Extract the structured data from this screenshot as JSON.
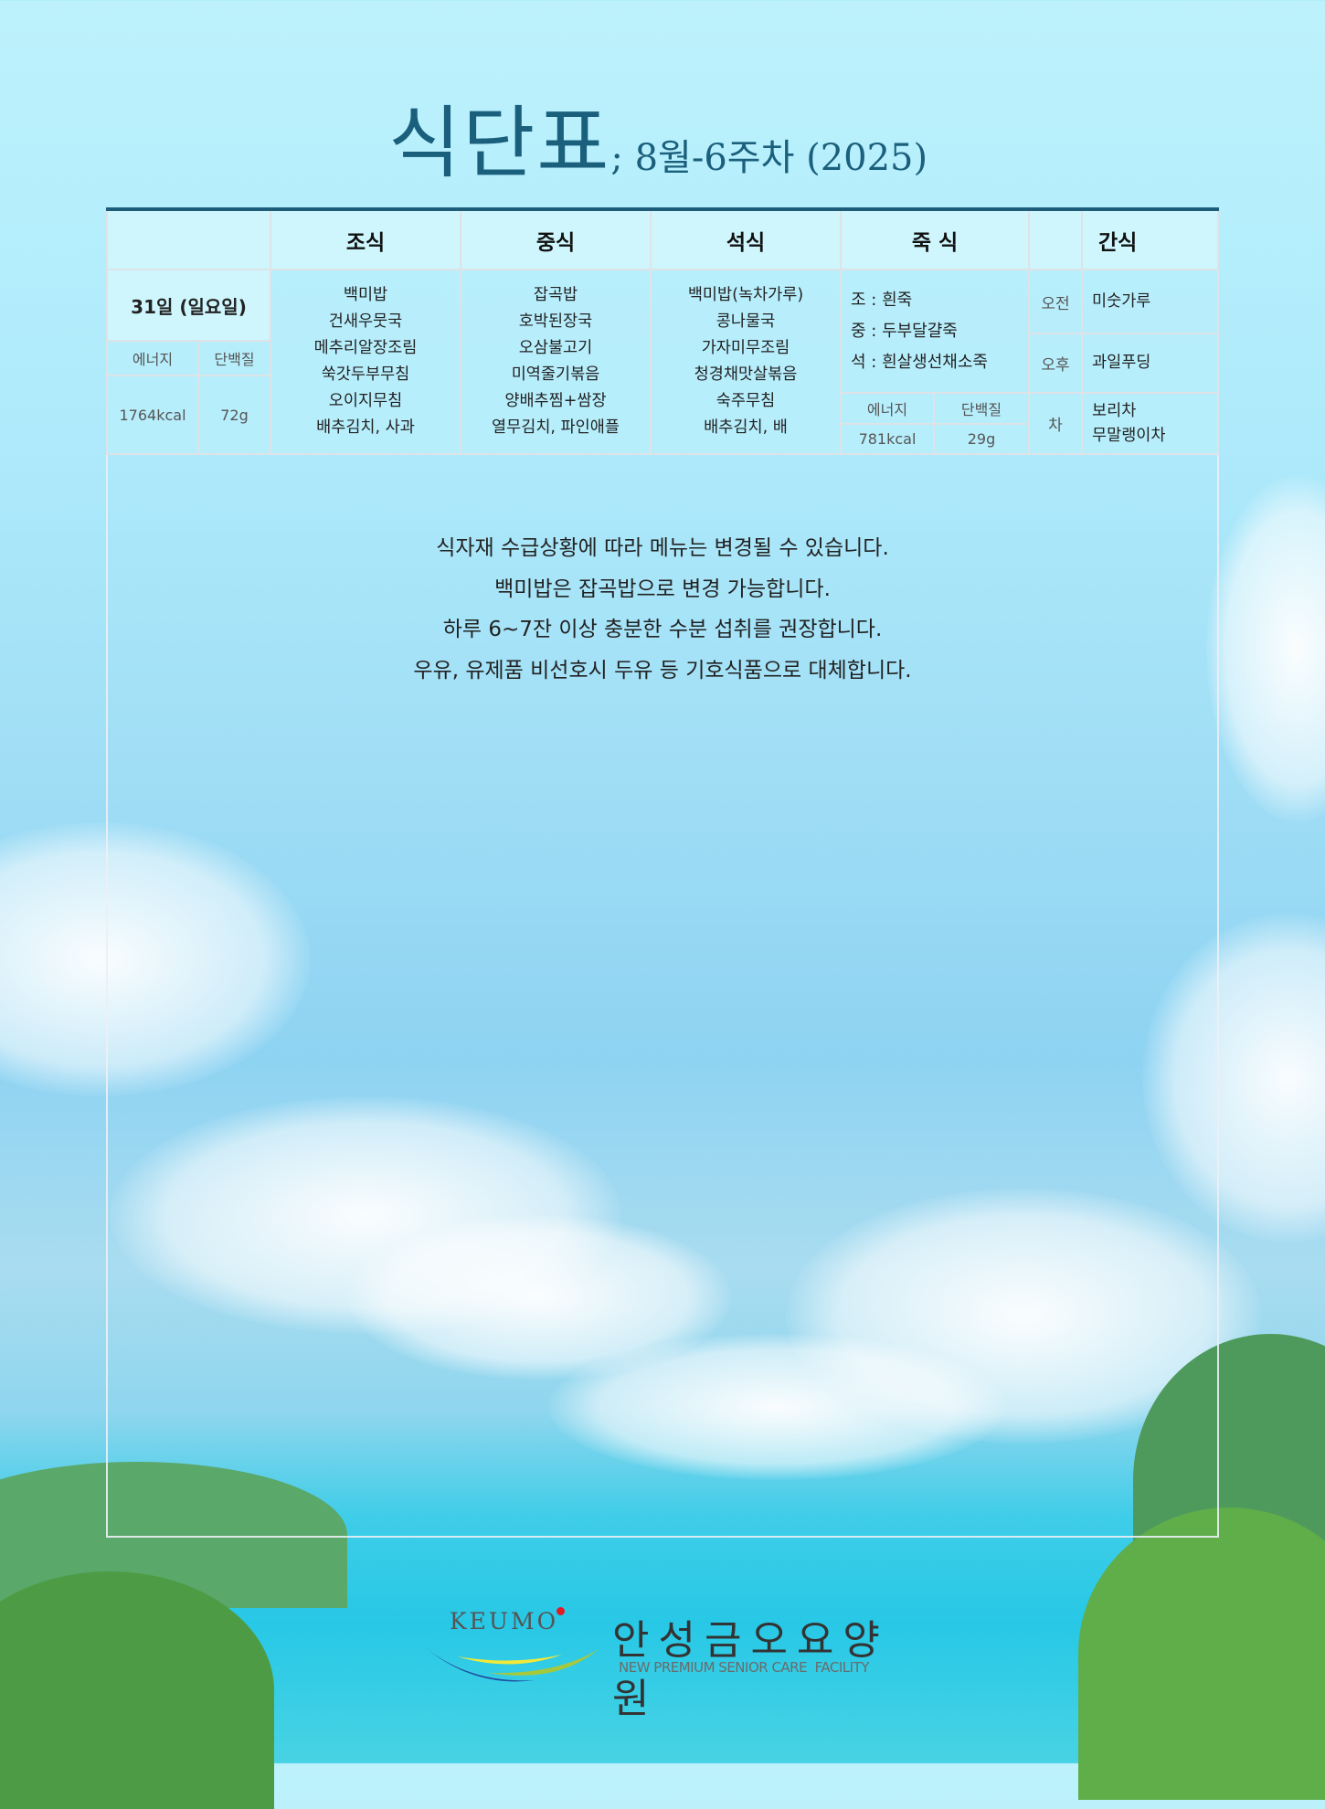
{
  "title": {
    "main": "식단표",
    "sub": "; 8월-6주차 (2025)"
  },
  "table": {
    "headers": {
      "breakfast": "조식",
      "lunch": "중식",
      "dinner": "석식",
      "porridge": "죽 식",
      "snack": "간식"
    },
    "date": "31일 (일요일)",
    "nutrition_labels": {
      "energy": "에너지",
      "protein": "단백질"
    },
    "regular_nutrition": {
      "energy": "1764kcal",
      "protein": "72g"
    },
    "breakfast": [
      "백미밥",
      "건새우뭇국",
      "메추리알장조림",
      "쑥갓두부무침",
      "오이지무침",
      "배추김치, 사과"
    ],
    "lunch": [
      "잡곡밥",
      "호박된장국",
      "오삼불고기",
      "미역줄기볶음",
      "양배추찜+쌈장",
      "열무김치, 파인애플"
    ],
    "dinner": [
      "백미밥(녹차가루)",
      "콩나물국",
      "가자미무조림",
      "청경채맛살볶음",
      "숙주무침",
      "배추김치, 배"
    ],
    "porridge": [
      "조 : 흰죽",
      "중 : 두부달걀죽",
      "석 : 흰살생선채소죽"
    ],
    "porridge_nutrition": {
      "energy": "781kcal",
      "protein": "29g"
    },
    "snacks": [
      {
        "time": "오전",
        "items": [
          "미숫가루"
        ]
      },
      {
        "time": "오후",
        "items": [
          "과일푸딩"
        ]
      },
      {
        "time": "차",
        "items": [
          "보리차",
          "무말랭이차"
        ]
      }
    ]
  },
  "notes": [
    "식자재 수급상황에 따라 메뉴는 변경될 수 있습니다.",
    "백미밥은 잡곡밥으로 변경 가능합니다.",
    "하루 6~7잔 이상 충분한 수분 섭취를 권장합니다.",
    "우유, 유제품 비선호시 두유 등 기호식품으로 대체합니다."
  ],
  "logo": {
    "brand": "KEUMO",
    "name": "안성금오요양원",
    "tagline": "NEW PREMIUM SENIOR CARE  FACILITY",
    "colors": {
      "dot": "#e01b24",
      "blue": "#1f4fa0",
      "yellow": "#f2e83a",
      "green": "#a6c93b"
    }
  }
}
